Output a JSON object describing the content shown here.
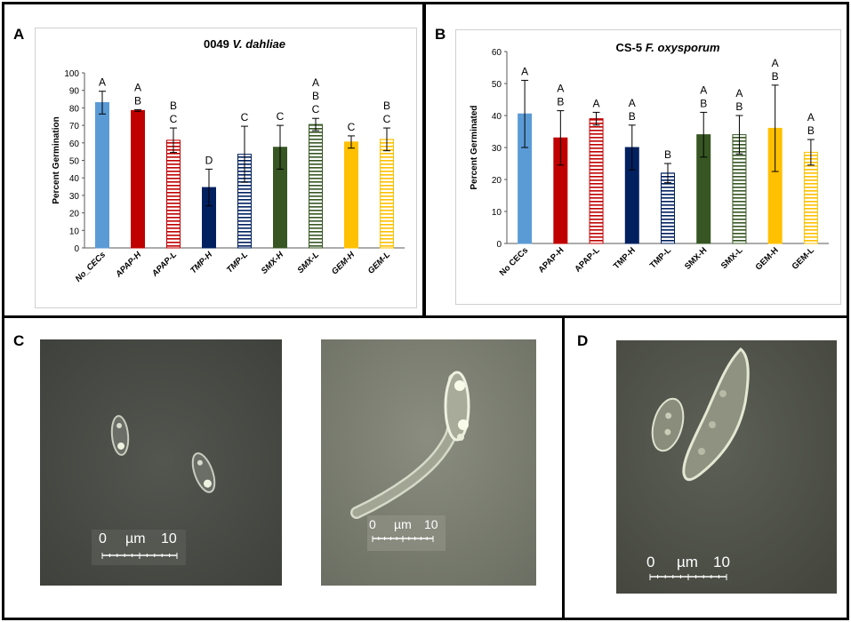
{
  "panels": {
    "A": "A",
    "B": "B",
    "C": "C",
    "D": "D"
  },
  "colors": {
    "blue": "#5b9bd5",
    "red": "#c00000",
    "navy": "#002060",
    "green": "#375623",
    "gold": "#ffc000",
    "micro_bg_dark": "#4b4e47",
    "micro_bg_light": "#7e8173"
  },
  "chart_data": [
    {
      "type": "bar",
      "title": "0049",
      "title_italic": "V. dahliae",
      "ylabel": "Percent Germination",
      "xlabel": "",
      "ylim": [
        0,
        100
      ],
      "yticks": [
        "0",
        "10",
        "20",
        "30",
        "40",
        "50",
        "60",
        "70",
        "80",
        "90",
        "100"
      ],
      "categories": [
        "No_CECs",
        "APAP-H",
        "APAP-L",
        "TMP-H",
        "TMP-L",
        "SMX-H",
        "SMX-L",
        "GEM-H",
        "GEM-L"
      ],
      "values": [
        83,
        78.5,
        61.5,
        34.5,
        53.5,
        57.5,
        70.5,
        60.5,
        62
      ],
      "errors": [
        6.5,
        0.5,
        7,
        10.5,
        16,
        12.5,
        3.5,
        3.5,
        6.5
      ],
      "letters": [
        [
          "A"
        ],
        [
          "A",
          "B"
        ],
        [
          "B",
          "C"
        ],
        [
          "D"
        ],
        [
          "C"
        ],
        [
          "C"
        ],
        [
          "A",
          "B",
          "C"
        ],
        [
          "C"
        ],
        [
          "B",
          "C"
        ]
      ],
      "fills": [
        "blue",
        "red",
        "red-stripes",
        "navy",
        "navy-stripes",
        "green",
        "green-stripes",
        "gold",
        "gold-stripes"
      ]
    },
    {
      "type": "bar",
      "title": "CS-5",
      "title_italic": "F. oxysporum",
      "ylabel": "Percent Germinated",
      "xlabel": "",
      "ylim": [
        0,
        60
      ],
      "yticks": [
        "0",
        "10",
        "20",
        "30",
        "40",
        "50",
        "60"
      ],
      "categories": [
        "No CECs",
        "APAP-H",
        "APAP-L",
        "TMP-H",
        "TMP-L",
        "SMX-H",
        "SMX-L",
        "GEM-H",
        "GEM-L"
      ],
      "values": [
        40.5,
        33,
        39,
        30,
        22,
        34,
        34,
        36,
        28.5
      ],
      "errors": [
        10.5,
        8.5,
        2,
        7,
        3,
        7,
        6,
        13.5,
        4
      ],
      "letters": [
        [
          "A"
        ],
        [
          "A",
          "B"
        ],
        [
          "A"
        ],
        [
          "A",
          "B"
        ],
        [
          "B"
        ],
        [
          "A",
          "B"
        ],
        [
          "A",
          "B"
        ],
        [
          "A",
          "B"
        ],
        [
          "A",
          "B"
        ]
      ],
      "fills": [
        "blue",
        "red",
        "red-stripes",
        "navy",
        "navy-stripes",
        "green",
        "green-stripes",
        "gold",
        "gold-stripes"
      ]
    }
  ],
  "micrographs": [
    {
      "scale_start": "0",
      "scale_unit": "µm",
      "scale_end": "10"
    },
    {
      "scale_start": "0",
      "scale_unit": "µm",
      "scale_end": "10"
    },
    {
      "scale_start": "0",
      "scale_unit": "µm",
      "scale_end": "10"
    }
  ]
}
